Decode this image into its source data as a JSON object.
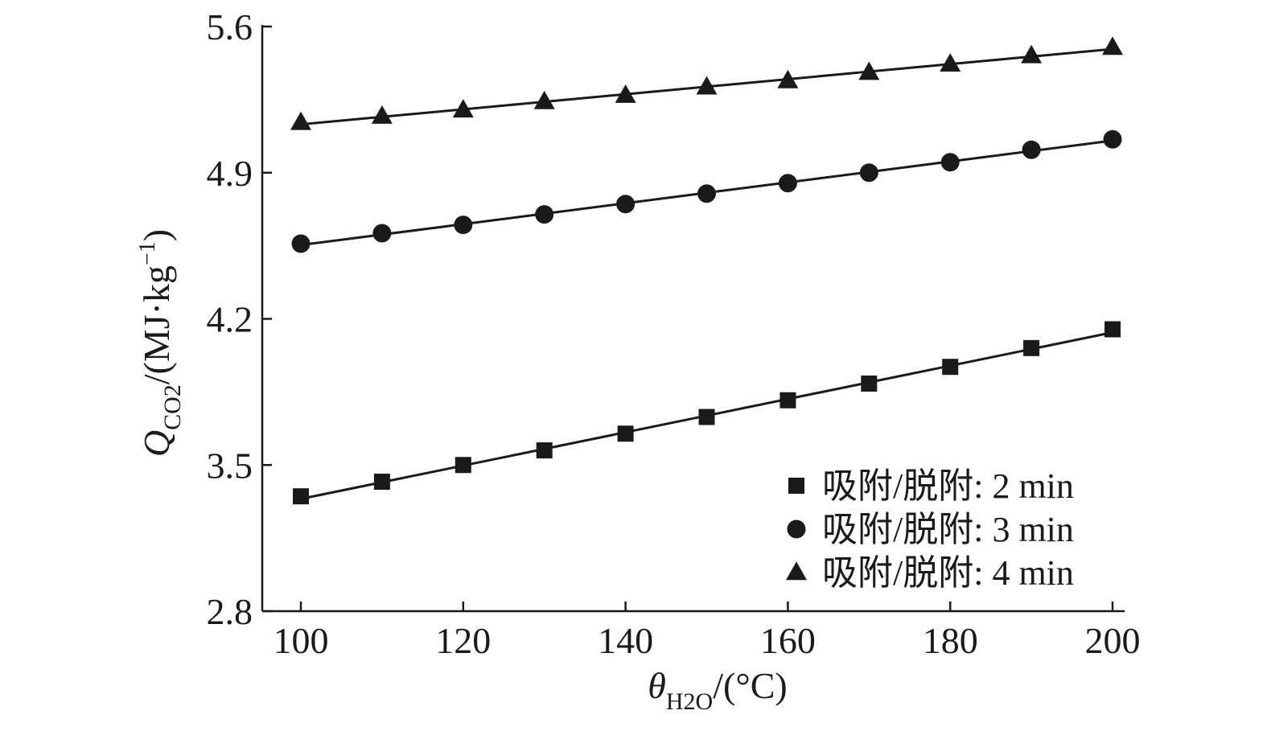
{
  "chart_data": {
    "type": "scatter",
    "title": "",
    "xlabel": {
      "symbol": "θ",
      "sub": "H2O",
      "unit": "/(°C)"
    },
    "ylabel": {
      "symbol": "Q",
      "sub": "CO2",
      "unit": "/(MJ·kg",
      "sup": "−1",
      "close": ")"
    },
    "xlim": [
      95,
      200
    ],
    "ylim": [
      2.8,
      5.6
    ],
    "xticks": [
      100,
      120,
      140,
      160,
      180,
      200
    ],
    "yticks": [
      2.8,
      3.5,
      4.2,
      4.9,
      5.6
    ],
    "xtick_labels": [
      "100",
      "120",
      "140",
      "160",
      "180",
      "200"
    ],
    "ytick_labels": [
      "2.8",
      "3.5",
      "4.2",
      "4.9",
      "5.6"
    ],
    "x": [
      100,
      110,
      120,
      130,
      140,
      150,
      160,
      170,
      180,
      190,
      200
    ],
    "legend_position": "bottom-right",
    "grid": false,
    "series": [
      {
        "name": "吸附/脱附: 2 min",
        "marker": "square",
        "values": [
          3.35,
          3.42,
          3.5,
          3.57,
          3.65,
          3.73,
          3.81,
          3.89,
          3.97,
          4.06,
          4.15
        ]
      },
      {
        "name": "吸附/脱附: 3 min",
        "marker": "circle",
        "values": [
          4.56,
          4.61,
          4.65,
          4.7,
          4.75,
          4.8,
          4.85,
          4.9,
          4.95,
          5.01,
          5.06
        ]
      },
      {
        "name": "吸附/脱附: 4 min",
        "marker": "triangle",
        "values": [
          5.14,
          5.17,
          5.2,
          5.24,
          5.27,
          5.31,
          5.34,
          5.38,
          5.42,
          5.46,
          5.5
        ]
      }
    ]
  }
}
